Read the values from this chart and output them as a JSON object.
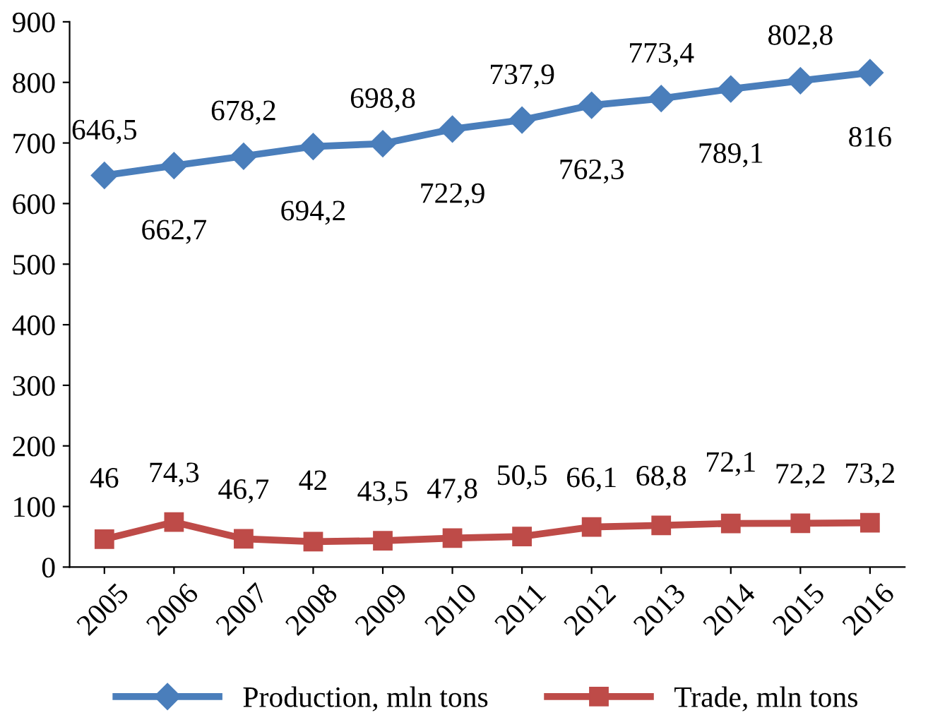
{
  "chart_data": {
    "type": "line",
    "categories": [
      "2005",
      "2006",
      "2007",
      "2008",
      "2009",
      "2010",
      "2011",
      "2012",
      "2013",
      "2014",
      "2015",
      "2016"
    ],
    "series": [
      {
        "name": "Production, mln tons",
        "color": "#4a7ebb",
        "marker": "diamond",
        "values": [
          646.5,
          662.7,
          678.2,
          694.2,
          698.8,
          722.9,
          737.9,
          762.3,
          773.4,
          789.1,
          802.8,
          816
        ],
        "value_labels": [
          "646,5",
          "662,7",
          "678,2",
          "694,2",
          "698,8",
          "722,9",
          "737,9",
          "762,3",
          "773,4",
          "789,1",
          "802,8",
          "816"
        ]
      },
      {
        "name": "Trade, mln tons",
        "color": "#be4b48",
        "marker": "square",
        "values": [
          46,
          74.3,
          46.7,
          42,
          43.5,
          47.8,
          50.5,
          66.1,
          68.8,
          72.1,
          72.2,
          73.2
        ],
        "value_labels": [
          "46",
          "74,3",
          "46,7",
          "42",
          "43,5",
          "47,8",
          "50,5",
          "66,1",
          "68,8",
          "72,1",
          "72,2",
          "73,2"
        ]
      }
    ],
    "ylim": [
      0,
      900
    ],
    "yticks": [
      0,
      100,
      200,
      300,
      400,
      500,
      600,
      700,
      800,
      900
    ],
    "grid": false,
    "legend": "bottom",
    "line_style": "solid"
  }
}
